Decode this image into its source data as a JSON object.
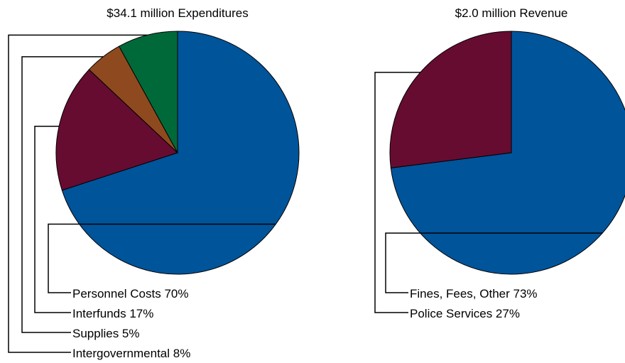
{
  "chart_data": [
    {
      "type": "pie",
      "title": "$34.1 million Expenditures",
      "slices": [
        {
          "label": "Personnel Costs",
          "value": 70,
          "display": "Personnel Costs 70%",
          "color": "#00549A"
        },
        {
          "label": "Interfunds",
          "value": 17,
          "display": "Interfunds 17%",
          "color": "#660C31"
        },
        {
          "label": "Supplies",
          "value": 5,
          "display": "Supplies 5%",
          "color": "#8E4A1E"
        },
        {
          "label": "Intergovernmental",
          "value": 8,
          "display": "Intergovernmental 8%",
          "color": "#00693A"
        }
      ]
    },
    {
      "type": "pie",
      "title": "$2.0 million Revenue",
      "slices": [
        {
          "label": "Fines, Fees, Other",
          "value": 73,
          "display": "Fines, Fees, Other 73%",
          "color": "#00549A"
        },
        {
          "label": "Police Services",
          "value": 27,
          "display": "Police Services 27%",
          "color": "#660C31"
        }
      ]
    }
  ]
}
